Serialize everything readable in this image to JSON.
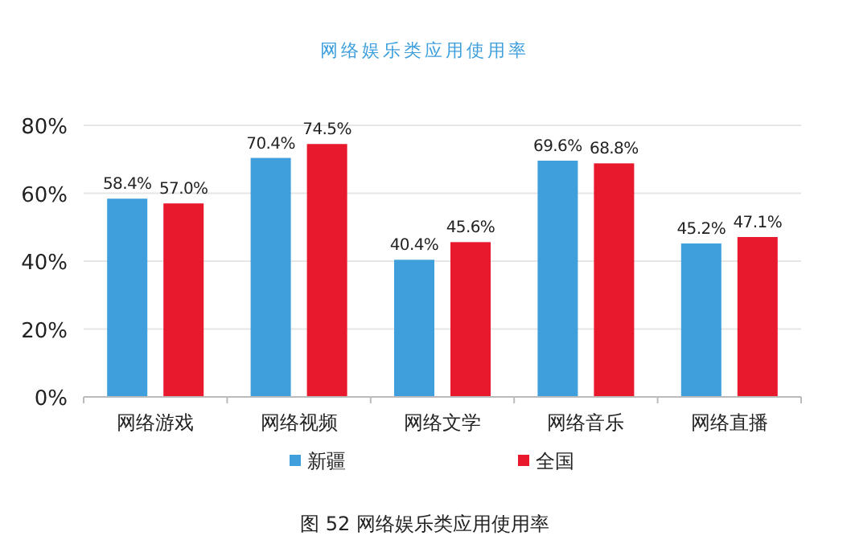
{
  "chart_data": {
    "type": "bar",
    "title": "网络娱乐类应用使用率",
    "categories": [
      "网络游戏",
      "网络视频",
      "网络文学",
      "网络音乐",
      "网络直播"
    ],
    "series": [
      {
        "name": "新疆",
        "color": "#3e9fdc",
        "values": [
          58.4,
          70.4,
          40.4,
          69.6,
          45.2
        ],
        "value_labels": [
          "58.4%",
          "70.4%",
          "40.4%",
          "69.6%",
          "45.2%"
        ]
      },
      {
        "name": "全国",
        "color": "#e8192c",
        "values": [
          57.0,
          74.5,
          45.6,
          68.8,
          47.1
        ],
        "value_labels": [
          "57.0%",
          "74.5%",
          "45.6%",
          "68.8%",
          "47.1%"
        ]
      }
    ],
    "ylim": [
      0,
      80
    ],
    "yticks": [
      {
        "value": 0,
        "label": "0%"
      },
      {
        "value": 20,
        "label": "20%"
      },
      {
        "value": 40,
        "label": "40%"
      },
      {
        "value": 60,
        "label": "60%"
      },
      {
        "value": 80,
        "label": "80%"
      }
    ],
    "grid": "y",
    "legend": "bottom",
    "annotations": [
      "图 52  网络娱乐类应用使用率"
    ]
  }
}
